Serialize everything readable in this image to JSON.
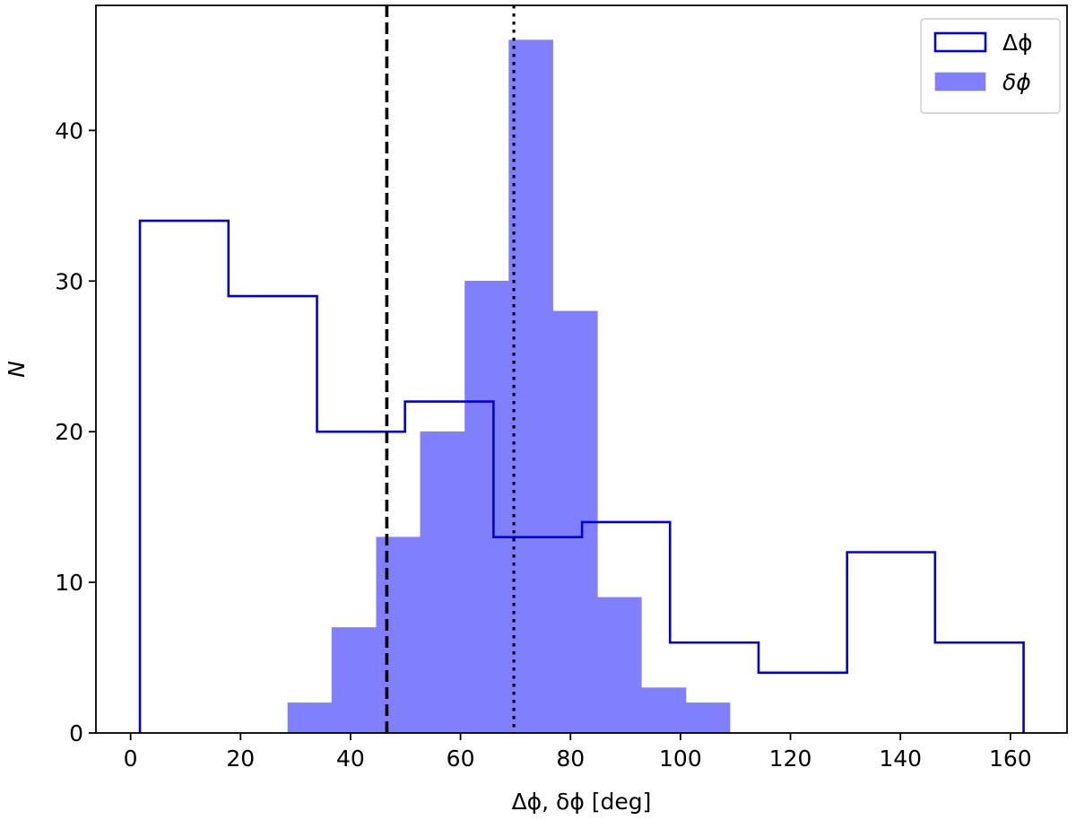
{
  "chart_data": {
    "type": "histogram",
    "title": "",
    "xlabel": "Δϕ,  δϕ [deg]",
    "ylabel": "N",
    "xlim": [
      -6.3,
      170.3
    ],
    "ylim": [
      0,
      48.3
    ],
    "xticks": [
      0,
      20,
      40,
      60,
      80,
      100,
      120,
      140,
      160
    ],
    "yticks": [
      0,
      10,
      20,
      30,
      40
    ],
    "grid": false,
    "legend_position": "top-right",
    "series": [
      {
        "name": "Δϕ",
        "style": "step",
        "color": "#0000dd",
        "bin_edges": [
          1.7,
          17.8,
          33.9,
          49.9,
          66.0,
          82.1,
          98.1,
          114.2,
          130.3,
          146.3,
          162.4
        ],
        "counts": [
          34,
          29,
          20,
          22,
          13,
          14,
          6,
          4,
          12,
          6
        ]
      },
      {
        "name": "δϕ",
        "style": "filled",
        "color": "#8080ff",
        "bin_edges": [
          28.6,
          36.6,
          44.7,
          52.7,
          60.8,
          68.8,
          76.8,
          84.9,
          92.9,
          101.0,
          109.0
        ],
        "counts": [
          2,
          7,
          13,
          20,
          30,
          46,
          28,
          9,
          3,
          2
        ]
      }
    ],
    "reference_lines": [
      {
        "x": 46.6,
        "style": "dashed",
        "color": "#000000"
      },
      {
        "x": 69.7,
        "style": "dotted",
        "color": "#000000"
      }
    ]
  }
}
